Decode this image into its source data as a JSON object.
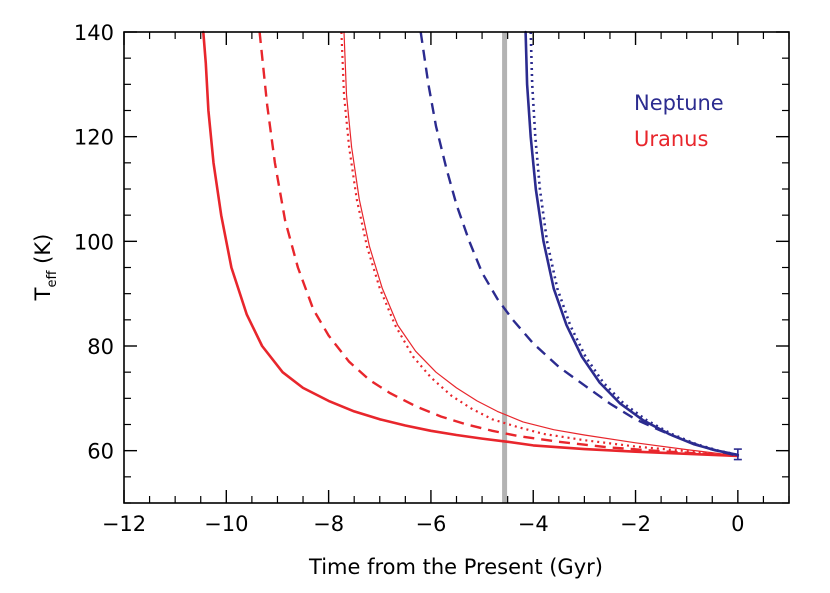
{
  "chart_data": {
    "type": "line",
    "title": "",
    "xlabel": "Time from the Present (Gyr)",
    "ylabel": {
      "main": "T",
      "sub": "eff",
      "unit": " (K)"
    },
    "xlim": [
      -12,
      1
    ],
    "ylim": [
      50,
      140
    ],
    "xticks": [
      -12,
      -10,
      -8,
      -6,
      -4,
      -2,
      0
    ],
    "xtick_labels": [
      "−12",
      "−10",
      "−8",
      "−6",
      "−4",
      "−2",
      "0"
    ],
    "yticks": [
      60,
      80,
      100,
      120,
      140
    ],
    "ytick_labels": [
      "60",
      "80",
      "100",
      "120",
      "140"
    ],
    "grid": false,
    "legend": {
      "placement": "top-right",
      "entries": [
        {
          "label": "Neptune",
          "color": "#2b2b8f"
        },
        {
          "label": "Uranus",
          "color": "#e8262c"
        }
      ]
    },
    "marker_line": {
      "x": -4.56,
      "color": "#b3b3b3"
    },
    "series": [
      {
        "planet": "Uranus",
        "color": "#e8262c",
        "style": "solid-thick",
        "points": [
          [
            -10.45,
            140
          ],
          [
            -10.4,
            134
          ],
          [
            -10.35,
            125
          ],
          [
            -10.25,
            115
          ],
          [
            -10.1,
            105
          ],
          [
            -9.9,
            95
          ],
          [
            -9.6,
            86
          ],
          [
            -9.3,
            80
          ],
          [
            -8.9,
            75
          ],
          [
            -8.5,
            72
          ],
          [
            -8,
            69.5
          ],
          [
            -7.5,
            67.5
          ],
          [
            -7,
            66
          ],
          [
            -6.5,
            64.8
          ],
          [
            -6,
            63.8
          ],
          [
            -5.5,
            63
          ],
          [
            -5,
            62.3
          ],
          [
            -4.5,
            61.7
          ],
          [
            -4,
            61
          ],
          [
            -3,
            60.3
          ],
          [
            -2,
            59.8
          ],
          [
            -1,
            59.4
          ],
          [
            0,
            59
          ]
        ]
      },
      {
        "planet": "Uranus",
        "color": "#e8262c",
        "style": "dashed-thick",
        "points": [
          [
            -9.35,
            140
          ],
          [
            -9.2,
            126
          ],
          [
            -9.05,
            115
          ],
          [
            -8.85,
            104
          ],
          [
            -8.6,
            95
          ],
          [
            -8.3,
            87
          ],
          [
            -8,
            82
          ],
          [
            -7.6,
            77
          ],
          [
            -7.2,
            73.5
          ],
          [
            -6.8,
            71
          ],
          [
            -6.3,
            68.5
          ],
          [
            -5.8,
            66.5
          ],
          [
            -5.3,
            65
          ],
          [
            -4.8,
            63.8
          ],
          [
            -4.3,
            62.8
          ],
          [
            -3.5,
            61.7
          ],
          [
            -2.5,
            60.6
          ],
          [
            -1.5,
            59.9
          ],
          [
            -0.5,
            59.3
          ],
          [
            0,
            59
          ]
        ]
      },
      {
        "planet": "Uranus",
        "color": "#e8262c",
        "style": "dotted",
        "points": [
          [
            -7.75,
            140
          ],
          [
            -7.7,
            128
          ],
          [
            -7.6,
            118
          ],
          [
            -7.45,
            108
          ],
          [
            -7.25,
            99
          ],
          [
            -7,
            91
          ],
          [
            -6.7,
            84
          ],
          [
            -6.35,
            78
          ],
          [
            -6,
            74
          ],
          [
            -5.6,
            70.5
          ],
          [
            -5.2,
            68
          ],
          [
            -4.8,
            66
          ],
          [
            -4.3,
            64.5
          ],
          [
            -3.8,
            63.2
          ],
          [
            -3,
            62
          ],
          [
            -2,
            60.8
          ],
          [
            -1,
            59.9
          ],
          [
            0,
            59
          ]
        ]
      },
      {
        "planet": "Uranus",
        "color": "#e8262c",
        "style": "solid-thin",
        "points": [
          [
            -7.7,
            140
          ],
          [
            -7.65,
            128
          ],
          [
            -7.55,
            118
          ],
          [
            -7.4,
            108
          ],
          [
            -7.2,
            99
          ],
          [
            -6.95,
            91
          ],
          [
            -6.65,
            84
          ],
          [
            -6.3,
            79
          ],
          [
            -5.9,
            75
          ],
          [
            -5.5,
            72
          ],
          [
            -5.1,
            69.5
          ],
          [
            -4.7,
            67.5
          ],
          [
            -4.2,
            65.5
          ],
          [
            -3.6,
            64
          ],
          [
            -3,
            63
          ],
          [
            -2,
            61.5
          ],
          [
            -1,
            60.2
          ],
          [
            0,
            59
          ]
        ]
      },
      {
        "planet": "Neptune",
        "color": "#2b2b8f",
        "style": "dashed-thick",
        "points": [
          [
            -6.2,
            140
          ],
          [
            -6.05,
            130
          ],
          [
            -5.9,
            122
          ],
          [
            -5.7,
            114
          ],
          [
            -5.5,
            107
          ],
          [
            -5.25,
            100
          ],
          [
            -5,
            94
          ],
          [
            -4.7,
            89
          ],
          [
            -4.4,
            85
          ],
          [
            -4,
            80.5
          ],
          [
            -3.5,
            76
          ],
          [
            -3,
            72.5
          ],
          [
            -2.5,
            69
          ],
          [
            -2,
            66
          ],
          [
            -1.5,
            63.8
          ],
          [
            -1,
            61.8
          ],
          [
            -0.5,
            60.2
          ],
          [
            0,
            59
          ]
        ]
      },
      {
        "planet": "Neptune",
        "color": "#2b2b8f",
        "style": "solid-thick",
        "points": [
          [
            -4.15,
            140
          ],
          [
            -4.12,
            130
          ],
          [
            -4.05,
            120
          ],
          [
            -3.95,
            110
          ],
          [
            -3.8,
            100
          ],
          [
            -3.6,
            91
          ],
          [
            -3.35,
            84
          ],
          [
            -3.05,
            78
          ],
          [
            -2.7,
            73
          ],
          [
            -2.3,
            69
          ],
          [
            -1.85,
            65.8
          ],
          [
            -1.35,
            63.2
          ],
          [
            -0.85,
            61.2
          ],
          [
            -0.4,
            60
          ],
          [
            0,
            59.2
          ]
        ]
      },
      {
        "planet": "Neptune",
        "color": "#2b2b8f",
        "style": "dotted-thick",
        "points": [
          [
            -4.05,
            140
          ],
          [
            -4.02,
            130
          ],
          [
            -3.96,
            120
          ],
          [
            -3.87,
            110
          ],
          [
            -3.73,
            100
          ],
          [
            -3.53,
            91
          ],
          [
            -3.28,
            84
          ],
          [
            -2.98,
            78
          ],
          [
            -2.63,
            73
          ],
          [
            -2.23,
            69
          ],
          [
            -1.78,
            65.8
          ],
          [
            -1.3,
            63.2
          ],
          [
            -0.8,
            61.2
          ],
          [
            -0.38,
            60
          ],
          [
            0,
            59.2
          ]
        ]
      }
    ],
    "error_bar": {
      "x": 0,
      "y_low": 58.3,
      "y_high": 60.3,
      "color": "#2b2b8f"
    }
  }
}
